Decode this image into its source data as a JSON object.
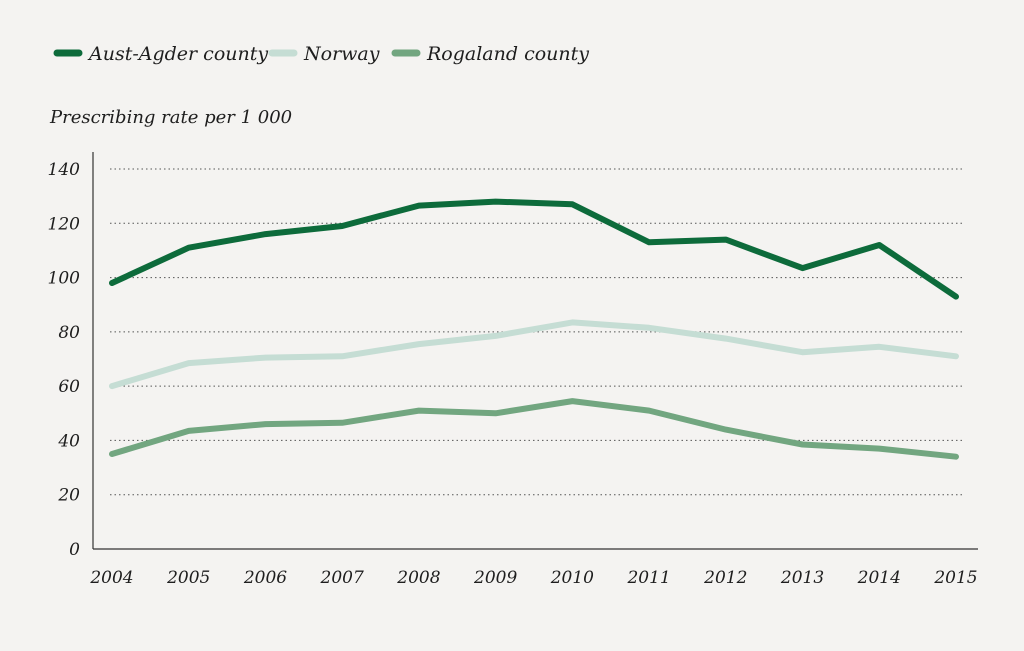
{
  "chart_data": {
    "type": "line",
    "title": "",
    "ylabel": "Prescribing rate per 1 000",
    "xlabel": "",
    "categories": [
      "2004",
      "2005",
      "2006",
      "2007",
      "2008",
      "2009",
      "2010",
      "2011",
      "2012",
      "2013",
      "2014",
      "2015"
    ],
    "ylim": [
      0,
      140
    ],
    "yticks": [
      0,
      20,
      40,
      60,
      80,
      100,
      120,
      140
    ],
    "grid": true,
    "legend_position": "top-left",
    "series": [
      {
        "name": "Aust-Agder county",
        "color": "#0d6b3b",
        "values": [
          98,
          111,
          116,
          119,
          126.5,
          128,
          127,
          113,
          114,
          103.5,
          112,
          93
        ]
      },
      {
        "name": "Norway",
        "color": "#c5ddd4",
        "values": [
          60,
          68.5,
          70.5,
          71,
          75.5,
          78.5,
          83.5,
          81.5,
          77.5,
          72.5,
          74.5,
          71
        ]
      },
      {
        "name": "Rogaland county",
        "color": "#72a680",
        "values": [
          35,
          43.5,
          46,
          46.5,
          51,
          50,
          54.5,
          51,
          44,
          38.5,
          37,
          34
        ]
      }
    ]
  }
}
